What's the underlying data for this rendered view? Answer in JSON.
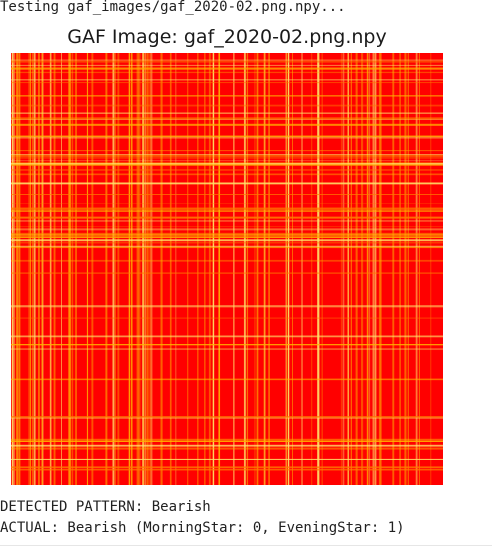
{
  "output": {
    "testing_line": "Testing gaf_images/gaf_2020-02.png.npy...",
    "detected_line": "DETECTED PATTERN: Bearish",
    "actual_line": "ACTUAL: Bearish (MorningStar: 0, EveningStar: 1)"
  },
  "figure": {
    "title": "GAF Image: gaf_2020-02.png.npy",
    "image": {
      "kind": "gaf-heatmap",
      "base_color": "#ff0000",
      "stripe_colors": [
        "#ff7b00",
        "#ffb300",
        "#ffe46a"
      ]
    }
  }
}
